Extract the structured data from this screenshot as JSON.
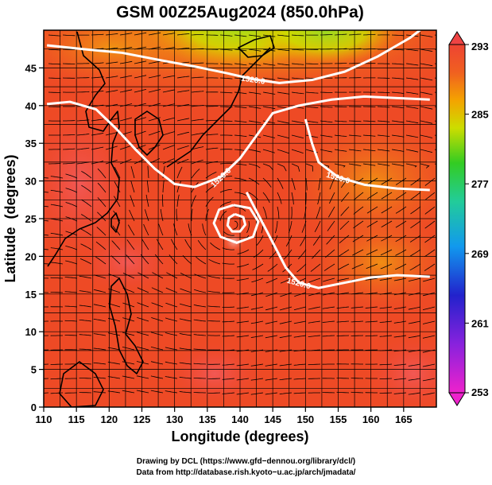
{
  "chart_data": {
    "type": "heatmap",
    "title": "GSM 00Z25Aug2024 (850.0hPa)",
    "xlabel": "Longitude (degrees)",
    "ylabel": "Latitude  (degrees)",
    "xlim": [
      110,
      170
    ],
    "ylim": [
      0,
      50
    ],
    "x_ticks": [
      110,
      115,
      120,
      125,
      130,
      135,
      140,
      145,
      150,
      155,
      160,
      165
    ],
    "y_ticks": [
      0,
      5,
      10,
      15,
      20,
      25,
      30,
      35,
      40,
      45
    ],
    "grid": true,
    "colorbar": {
      "ticks": [
        253,
        261,
        269,
        277,
        285,
        293
      ],
      "range": [
        253,
        293
      ],
      "placement": "right"
    },
    "contours": [
      {
        "label": "1520.0",
        "points": [
          [
            110.5,
            48.0
          ],
          [
            116,
            47.5
          ],
          [
            122,
            47.0
          ],
          [
            128,
            46.0
          ],
          [
            133,
            45.2
          ],
          [
            138,
            44.3
          ],
          [
            142,
            43.5
          ],
          [
            146,
            43.0
          ],
          [
            151,
            43.4
          ],
          [
            156,
            44.5
          ],
          [
            161,
            46.5
          ],
          [
            166,
            49.0
          ],
          [
            167.5,
            50
          ]
        ]
      },
      {
        "label": "1520.0",
        "points": [
          [
            110.5,
            40.2
          ],
          [
            114,
            40.5
          ],
          [
            118,
            39.5
          ],
          [
            121,
            37.0
          ],
          [
            124,
            34.2
          ],
          [
            127,
            31.6
          ],
          [
            130,
            29.6
          ],
          [
            133,
            29.2
          ],
          [
            137,
            30.5
          ],
          [
            140,
            33.0
          ],
          [
            142.5,
            36.0
          ],
          [
            145,
            39.0
          ],
          [
            149,
            40.0
          ],
          [
            154,
            40.8
          ],
          [
            159,
            41.2
          ],
          [
            164,
            41.0
          ],
          [
            169,
            40.8
          ]
        ]
      },
      {
        "label": "1520.0",
        "points": [
          [
            150,
            38.2
          ],
          [
            151,
            35.0
          ],
          [
            152,
            32.5
          ],
          [
            155,
            30.5
          ],
          [
            159,
            29.5
          ],
          [
            164,
            29.0
          ],
          [
            169,
            28.8
          ]
        ]
      },
      {
        "label": "1520.0",
        "points": [
          [
            141,
            28.5
          ],
          [
            142.5,
            26.0
          ],
          [
            144,
            23.5
          ],
          [
            145.5,
            21.0
          ],
          [
            147,
            18.5
          ],
          [
            149,
            16.5
          ],
          [
            152,
            15.8
          ],
          [
            156,
            16.5
          ],
          [
            160,
            17.2
          ],
          [
            164,
            17.5
          ],
          [
            169,
            17.3
          ]
        ]
      },
      {
        "label": "",
        "points": [
          [
            139,
            26.8
          ],
          [
            141.5,
            26.4
          ],
          [
            142.8,
            24.6
          ],
          [
            142.0,
            22.6
          ],
          [
            139.5,
            21.8
          ],
          [
            137.0,
            22.6
          ],
          [
            136.0,
            24.4
          ],
          [
            136.8,
            26.2
          ],
          [
            139,
            26.8
          ]
        ]
      },
      {
        "label": "",
        "points": [
          [
            139.2,
            25.6
          ],
          [
            140.5,
            25.2
          ],
          [
            140.8,
            24.2
          ],
          [
            140.0,
            23.3
          ],
          [
            138.8,
            23.3
          ],
          [
            138.1,
            24.1
          ],
          [
            138.3,
            25.1
          ],
          [
            139.2,
            25.6
          ]
        ]
      }
    ]
  },
  "credits": {
    "drawing": "Drawing by DCL (https://www.gfd−dennou.org/library/dcl/)",
    "data": "Data from http://database.rish.kyoto−u.ac.jp/arch/jmadata/"
  }
}
